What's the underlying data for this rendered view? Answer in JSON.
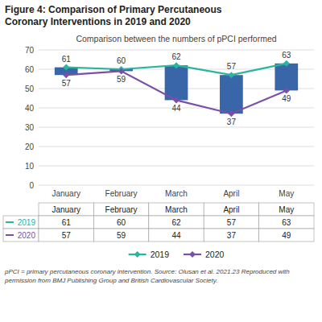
{
  "chart_data": {
    "type": "line",
    "title": [
      "Figure 4: Comparison of Primary Percutaneous",
      "Coronary Interventions in 2019 and 2020"
    ],
    "subtitle": "Comparison between the numbers of pPCI performed",
    "categories": [
      "January",
      "February",
      "March",
      "April",
      "May"
    ],
    "series": [
      {
        "name": "2019",
        "color": "#2ab5a0",
        "marker": "diamond",
        "values": [
          61,
          60,
          62,
          57,
          63
        ]
      },
      {
        "name": "2020",
        "color": "#7b4fa6",
        "marker": "diamond",
        "values": [
          57,
          59,
          44,
          37,
          49
        ]
      }
    ],
    "color": "#2255a0",
    "ylim": [
      0,
      70
    ],
    "yticks": [
      0,
      10,
      20,
      30,
      40,
      50,
      60,
      70
    ],
    "grid": true,
    "data_labels": true,
    "legend": "bottom",
    "footnote": [
      "pPCI = primary percutaneous coronary intervention. Source: Olusan et al. 2021.23 Reproduced with",
      "permission from BMJ Publishing Group and British Cardiovascular Society."
    ]
  }
}
